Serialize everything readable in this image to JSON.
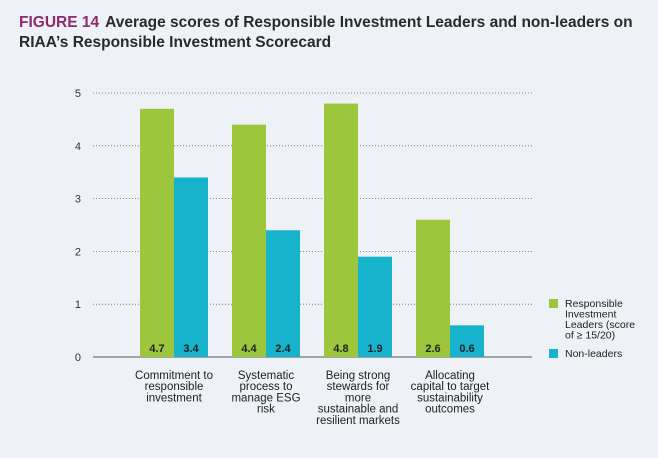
{
  "figure": {
    "label": "FIGURE 14",
    "title": "Average scores of Responsible Investment Leaders and non-leaders on RIAA’s Responsible Investment Scorecard"
  },
  "colors": {
    "leaders": "#9cc63c",
    "non_leaders": "#17b2cc",
    "figure_label": "#8e2a6e",
    "background": "#eef1f5"
  },
  "chart_data": {
    "type": "bar",
    "title": "Average scores of Responsible Investment Leaders and non-leaders on RIAA’s Responsible Investment Scorecard",
    "categories": [
      [
        "Commitment to",
        "responsible",
        "investment"
      ],
      [
        "Systematic",
        "process to",
        "manage ESG",
        "risk"
      ],
      [
        "Being strong",
        "stewards for",
        "more",
        "sustainable and",
        "resilient markets"
      ],
      [
        "Allocating",
        "capital to target",
        "sustainability",
        "outcomes"
      ]
    ],
    "series": [
      {
        "name": [
          "Responsible",
          "Investment",
          "Leaders (score",
          "of ≥ 15/20)"
        ],
        "values": [
          4.7,
          4.4,
          4.8,
          2.6
        ]
      },
      {
        "name": [
          "Non-leaders"
        ],
        "values": [
          3.4,
          2.4,
          1.9,
          0.6
        ]
      }
    ],
    "value_labels": [
      [
        "4.7",
        "4.4",
        "4.8",
        "2.6"
      ],
      [
        "3.4",
        "2.4",
        "1.9",
        "0.6"
      ]
    ],
    "yticks": [
      0,
      1,
      2,
      3,
      4,
      5
    ],
    "ylim": [
      0,
      5
    ],
    "xlabel": "",
    "ylabel": "",
    "grid": "horizontal dotted",
    "legend_position": "right"
  }
}
